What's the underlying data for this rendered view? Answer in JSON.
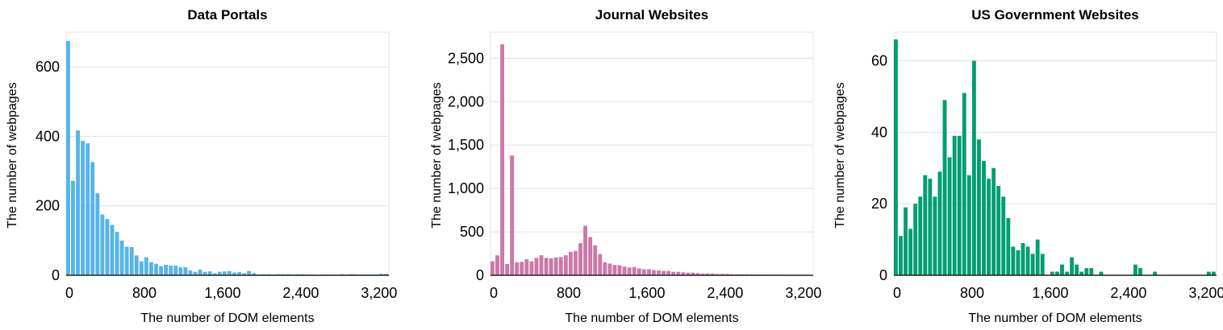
{
  "chart_data": [
    {
      "type": "bar",
      "title": "Data Portals",
      "xlabel": "The number of DOM elements",
      "ylabel": "The number of webpages",
      "color": "#56B4E9",
      "bin_width": 50,
      "x_start": 0,
      "xlim": [
        0,
        3300
      ],
      "ylim": [
        0,
        700
      ],
      "xticks": [
        0,
        800,
        1600,
        2400,
        3200
      ],
      "xtick_labels": [
        "0",
        "800",
        "1,600",
        "2,400",
        "3,200"
      ],
      "yticks": [
        0,
        200,
        400,
        600
      ],
      "ytick_labels": [
        "0",
        "200",
        "400",
        "600"
      ],
      "grid": true,
      "values": [
        675,
        272,
        417,
        387,
        380,
        326,
        236,
        175,
        162,
        145,
        125,
        100,
        82,
        81,
        57,
        40,
        52,
        38,
        33,
        26,
        30,
        28,
        28,
        23,
        23,
        14,
        10,
        16,
        10,
        11,
        6,
        10,
        11,
        12,
        8,
        9,
        6,
        12,
        6,
        2,
        3,
        3,
        2,
        3,
        3,
        3,
        2,
        3,
        3,
        2,
        2,
        1,
        2,
        2,
        2,
        1,
        3,
        2,
        3,
        2,
        2,
        2,
        2,
        2,
        4,
        4
      ]
    },
    {
      "type": "bar",
      "title": "Journal Websites",
      "xlabel": "The number of DOM elements",
      "ylabel": "The number of webpages",
      "color": "#CC79A7",
      "bin_width": 50,
      "x_start": 0,
      "xlim": [
        0,
        3300
      ],
      "ylim": [
        0,
        2800
      ],
      "xticks": [
        0,
        800,
        1600,
        2400,
        3200
      ],
      "xtick_labels": [
        "0",
        "800",
        "1,600",
        "2,400",
        "3,200"
      ],
      "yticks": [
        0,
        500,
        1000,
        1500,
        2000,
        2500
      ],
      "ytick_labels": [
        "0",
        "500",
        "1,000",
        "1,500",
        "2,000",
        "2,500"
      ],
      "grid": true,
      "values": [
        160,
        230,
        2660,
        130,
        1380,
        150,
        155,
        185,
        160,
        200,
        230,
        200,
        195,
        205,
        210,
        230,
        270,
        280,
        370,
        570,
        440,
        345,
        245,
        150,
        135,
        120,
        115,
        100,
        90,
        95,
        80,
        70,
        70,
        60,
        55,
        50,
        50,
        40,
        40,
        35,
        30,
        30,
        25,
        20,
        20,
        20,
        15,
        15,
        15,
        10,
        10,
        10,
        10,
        8,
        8,
        8,
        6,
        6,
        6,
        6,
        5,
        5,
        5,
        4,
        4,
        4
      ]
    },
    {
      "type": "bar",
      "title": "US Government Websites",
      "xlabel": "The number of DOM elements",
      "ylabel": "The number of webpages",
      "color": "#009E73",
      "bin_width": 50,
      "x_start": 0,
      "xlim": [
        0,
        3300
      ],
      "ylim": [
        0,
        68
      ],
      "xticks": [
        0,
        800,
        1600,
        2400,
        3200
      ],
      "xtick_labels": [
        "0",
        "800",
        "1,600",
        "2,400",
        "3,200"
      ],
      "yticks": [
        0,
        20,
        40,
        60
      ],
      "ytick_labels": [
        "0",
        "20",
        "40",
        "60"
      ],
      "grid": true,
      "values": [
        66,
        11,
        19,
        13,
        20,
        22,
        28,
        27,
        22,
        29,
        49,
        33,
        39,
        39,
        51,
        28,
        60,
        38,
        32,
        27,
        30,
        25,
        22,
        16,
        8,
        7,
        9,
        8,
        6,
        10,
        6,
        0,
        1,
        1,
        3,
        1,
        5,
        3,
        1,
        2,
        2,
        0,
        1,
        0,
        0,
        0,
        0,
        0,
        0,
        3,
        2,
        0,
        0,
        1,
        0,
        0,
        0,
        0,
        0,
        0,
        0,
        0,
        0,
        0,
        1,
        1
      ]
    }
  ]
}
